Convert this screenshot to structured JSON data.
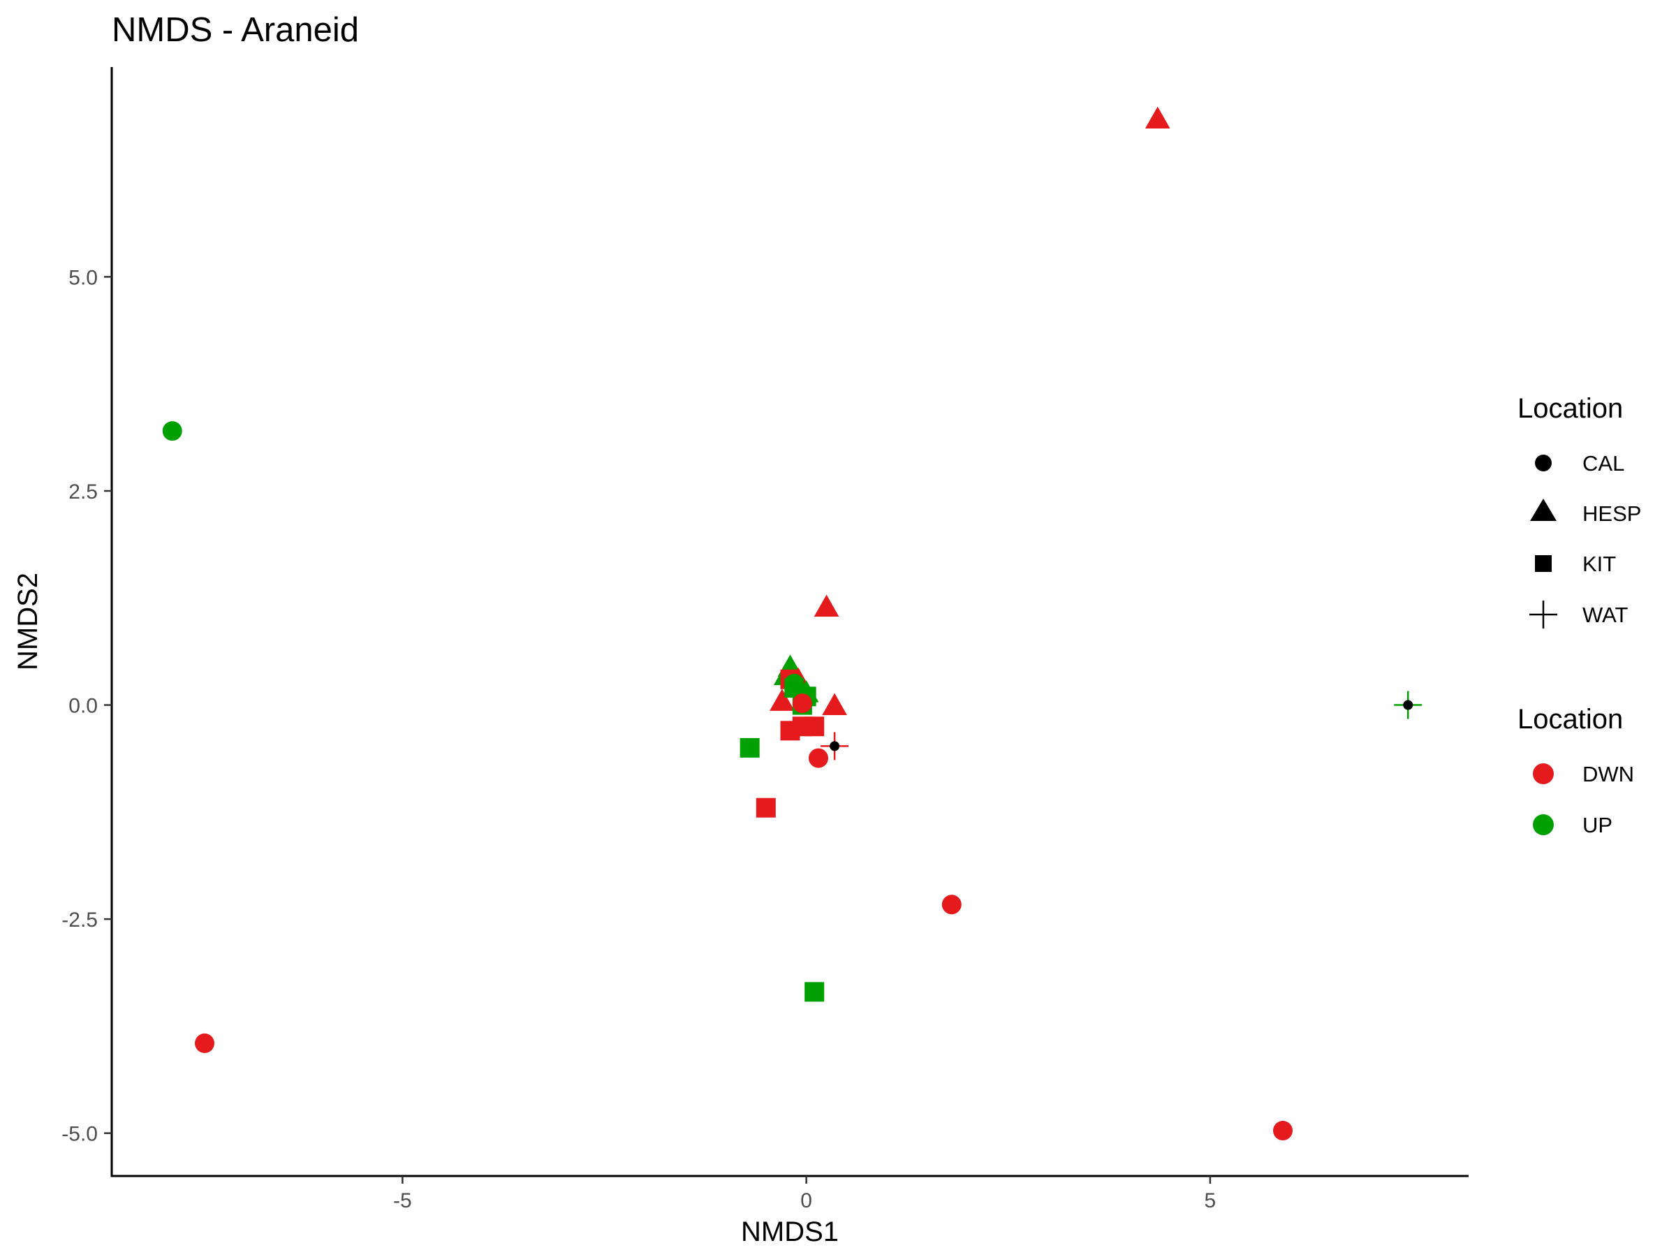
{
  "chart_data": {
    "type": "scatter",
    "title": "NMDS - Araneid",
    "xlabel": "NMDS1",
    "ylabel": "NMDS2",
    "xlim": [
      -8.6,
      8.2
    ],
    "ylim": [
      -5.5,
      7.45
    ],
    "x_ticks": [
      -5,
      0,
      5
    ],
    "x_tick_labels": [
      "-5",
      "0",
      "5"
    ],
    "y_ticks": [
      -5.0,
      -2.5,
      0.0,
      2.5,
      5.0
    ],
    "y_tick_labels": [
      "-5.0",
      "-2.5",
      "0.0",
      "2.5",
      "5.0"
    ],
    "grid": false,
    "legend_position": "right",
    "legends": [
      {
        "title": "Location",
        "kind": "shape",
        "entries": [
          {
            "label": "CAL",
            "shape": "circle"
          },
          {
            "label": "HESP",
            "shape": "triangle"
          },
          {
            "label": "KIT",
            "shape": "square"
          },
          {
            "label": "WAT",
            "shape": "plus"
          }
        ]
      },
      {
        "title": "Location",
        "kind": "color",
        "entries": [
          {
            "label": "DWN",
            "color": "#e41a1c"
          },
          {
            "label": "UP",
            "color": "#00a000"
          }
        ]
      }
    ],
    "colors": {
      "DWN": "#e41a1c",
      "UP": "#00a000",
      "axis": "#000000",
      "tick_text": "#4d4d4d"
    },
    "points": [
      {
        "x": 4.35,
        "y": 6.85,
        "shape": "HESP",
        "group": "DWN"
      },
      {
        "x": -7.85,
        "y": 3.2,
        "shape": "CAL",
        "group": "UP"
      },
      {
        "x": 0.25,
        "y": 1.15,
        "shape": "HESP",
        "group": "DWN"
      },
      {
        "x": -0.2,
        "y": 0.45,
        "shape": "HESP",
        "group": "UP"
      },
      {
        "x": -0.25,
        "y": 0.35,
        "shape": "HESP",
        "group": "UP"
      },
      {
        "x": -0.3,
        "y": 0.05,
        "shape": "HESP",
        "group": "DWN"
      },
      {
        "x": -0.1,
        "y": 0.3,
        "shape": "HESP",
        "group": "DWN"
      },
      {
        "x": 0.0,
        "y": 0.15,
        "shape": "HESP",
        "group": "UP"
      },
      {
        "x": 0.35,
        "y": 0.0,
        "shape": "HESP",
        "group": "DWN"
      },
      {
        "x": -0.2,
        "y": 0.3,
        "shape": "KIT",
        "group": "DWN"
      },
      {
        "x": -0.15,
        "y": 0.2,
        "shape": "KIT",
        "group": "UP"
      },
      {
        "x": 0.0,
        "y": 0.1,
        "shape": "KIT",
        "group": "UP"
      },
      {
        "x": -0.05,
        "y": 0.0,
        "shape": "KIT",
        "group": "UP"
      },
      {
        "x": 0.1,
        "y": -0.25,
        "shape": "KIT",
        "group": "DWN"
      },
      {
        "x": -0.05,
        "y": -0.25,
        "shape": "KIT",
        "group": "DWN"
      },
      {
        "x": -0.2,
        "y": -0.3,
        "shape": "KIT",
        "group": "DWN"
      },
      {
        "x": -0.7,
        "y": -0.5,
        "shape": "KIT",
        "group": "UP"
      },
      {
        "x": -0.5,
        "y": -1.2,
        "shape": "KIT",
        "group": "DWN"
      },
      {
        "x": 0.1,
        "y": -3.35,
        "shape": "KIT",
        "group": "UP"
      },
      {
        "x": -0.15,
        "y": 0.25,
        "shape": "CAL",
        "group": "UP"
      },
      {
        "x": -0.05,
        "y": 0.05,
        "shape": "CAL",
        "group": "UP"
      },
      {
        "x": -0.05,
        "y": 0.02,
        "shape": "CAL",
        "group": "DWN"
      },
      {
        "x": 0.15,
        "y": -0.62,
        "shape": "CAL",
        "group": "DWN"
      },
      {
        "x": 1.8,
        "y": -2.33,
        "shape": "CAL",
        "group": "DWN"
      },
      {
        "x": -7.45,
        "y": -3.95,
        "shape": "CAL",
        "group": "DWN"
      },
      {
        "x": 5.9,
        "y": -4.97,
        "shape": "CAL",
        "group": "DWN"
      },
      {
        "x": 0.35,
        "y": -0.48,
        "shape": "WAT",
        "group": "DWN"
      },
      {
        "x": 7.45,
        "y": 0.0,
        "shape": "WAT",
        "group": "UP"
      }
    ]
  }
}
